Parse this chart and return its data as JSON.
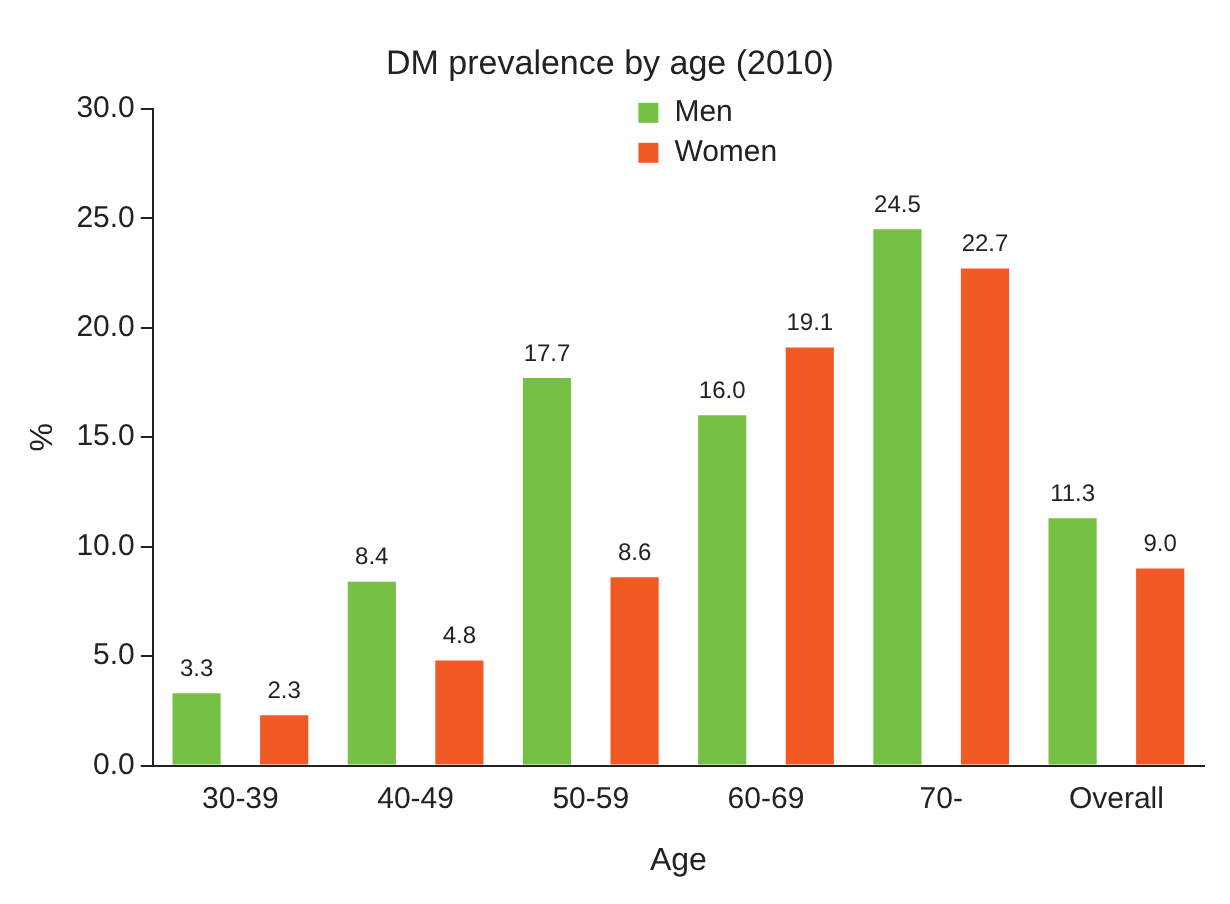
{
  "chart_data": {
    "type": "bar",
    "title": "DM prevalence by age (2010)",
    "xlabel": "Age",
    "ylabel": "%",
    "categories": [
      "30-39",
      "40-49",
      "50-59",
      "60-69",
      "70-",
      "Overall"
    ],
    "series": [
      {
        "name": "Men",
        "color": "#76c043",
        "values": [
          3.3,
          8.4,
          17.7,
          16.0,
          24.5,
          11.3
        ],
        "value_labels": [
          "3.3",
          "8.4",
          "17.7",
          "16.0",
          "24.5",
          "11.3"
        ]
      },
      {
        "name": "Women",
        "color": "#f15a24",
        "values": [
          2.3,
          4.8,
          8.6,
          19.1,
          22.7,
          9.0
        ],
        "value_labels": [
          "2.3",
          "4.8",
          "8.6",
          "19.1",
          "22.7",
          "9.0"
        ]
      }
    ],
    "ylim": [
      0,
      30
    ],
    "yticks": [
      {
        "value": 0,
        "label": "0.0"
      },
      {
        "value": 5,
        "label": "5.0"
      },
      {
        "value": 10,
        "label": "10.0"
      },
      {
        "value": 15,
        "label": "15.0"
      },
      {
        "value": 20,
        "label": "20.0"
      },
      {
        "value": 25,
        "label": "25.0"
      },
      {
        "value": 30,
        "label": "30.0"
      }
    ],
    "grid": false,
    "legend": "top"
  }
}
